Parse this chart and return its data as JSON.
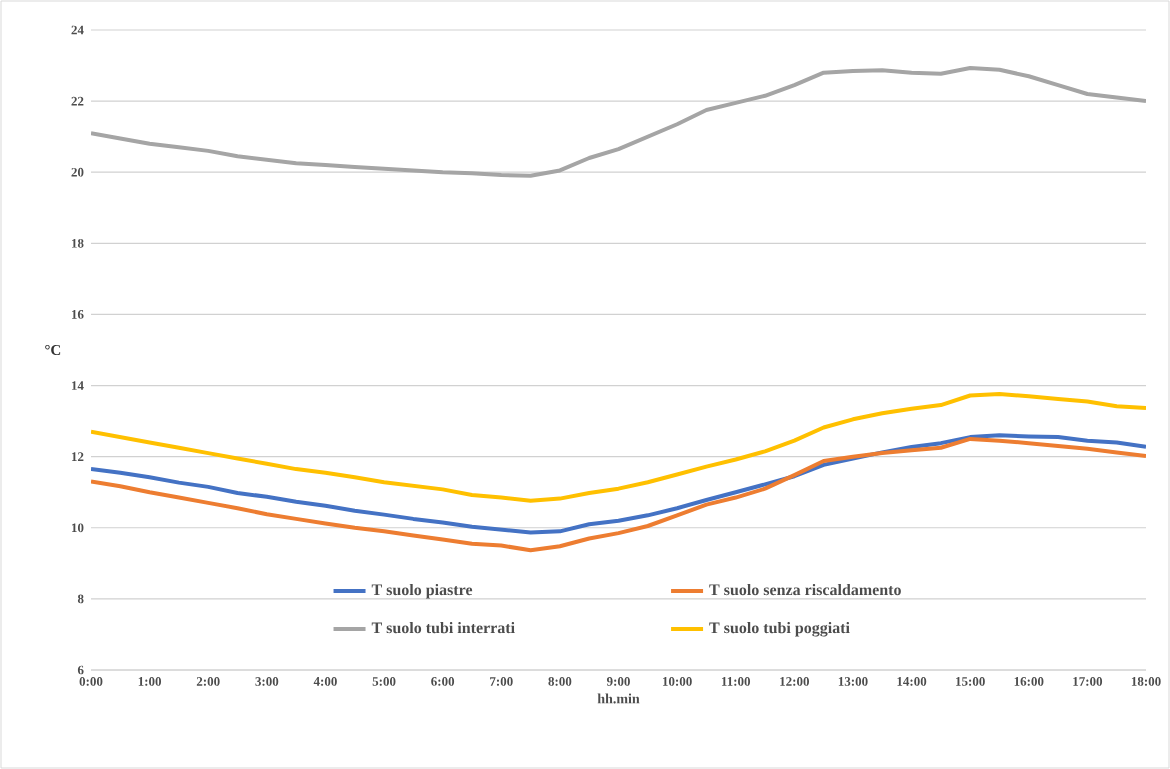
{
  "chart_data": {
    "type": "line",
    "xlabel": "hh.min",
    "ylabel": "°C",
    "x": [
      0,
      0.5,
      1,
      1.5,
      2,
      2.5,
      3,
      3.5,
      4,
      4.5,
      5,
      5.5,
      6,
      6.5,
      7,
      7.5,
      8,
      8.5,
      9,
      9.5,
      10,
      10.5,
      11,
      11.5,
      12,
      12.5,
      13,
      13.5,
      14,
      14.5,
      15,
      15.5,
      16,
      16.5,
      17,
      17.5,
      18
    ],
    "series": [
      {
        "name": "T suolo  piastre",
        "color": "#4472c4",
        "values": [
          11.65,
          11.55,
          11.42,
          11.27,
          11.15,
          10.98,
          10.87,
          10.73,
          10.62,
          10.48,
          10.37,
          10.25,
          10.15,
          10.03,
          9.95,
          9.87,
          9.9,
          10.1,
          10.2,
          10.35,
          10.55,
          10.78,
          11.0,
          11.22,
          11.45,
          11.77,
          11.95,
          12.12,
          12.27,
          12.38,
          12.55,
          12.6,
          12.57,
          12.55,
          12.45,
          12.4,
          12.28
        ]
      },
      {
        "name": "T suolo senza riscaldamento",
        "color": "#ed7d31",
        "values": [
          11.3,
          11.17,
          11.0,
          10.85,
          10.7,
          10.55,
          10.38,
          10.25,
          10.12,
          10.0,
          9.9,
          9.78,
          9.67,
          9.55,
          9.5,
          9.37,
          9.48,
          9.7,
          9.85,
          10.05,
          10.35,
          10.65,
          10.85,
          11.1,
          11.48,
          11.88,
          12.0,
          12.1,
          12.18,
          12.25,
          12.5,
          12.45,
          12.38,
          12.3,
          12.22,
          12.12,
          12.02
        ]
      },
      {
        "name": "T suolo tubi interrati",
        "color": "#a5a5a5",
        "values": [
          21.1,
          20.95,
          20.8,
          20.7,
          20.6,
          20.45,
          20.35,
          20.25,
          20.2,
          20.15,
          20.1,
          20.05,
          20.0,
          19.97,
          19.92,
          19.9,
          20.05,
          20.4,
          20.65,
          21.0,
          21.35,
          21.75,
          21.95,
          22.15,
          22.45,
          22.8,
          22.85,
          22.87,
          22.8,
          22.77,
          22.93,
          22.88,
          22.7,
          22.45,
          22.2,
          22.1,
          22.0
        ]
      },
      {
        "name": "T suolo tubi poggiati",
        "color": "#ffc000",
        "values": [
          12.7,
          12.55,
          12.4,
          12.25,
          12.1,
          11.95,
          11.8,
          11.65,
          11.55,
          11.42,
          11.28,
          11.18,
          11.08,
          10.92,
          10.85,
          10.76,
          10.82,
          10.98,
          11.1,
          11.28,
          11.5,
          11.72,
          11.92,
          12.15,
          12.45,
          12.82,
          13.05,
          13.22,
          13.35,
          13.45,
          13.72,
          13.76,
          13.7,
          13.62,
          13.55,
          13.42,
          13.37
        ]
      }
    ],
    "xlim": [
      0,
      18
    ],
    "xticks": [
      {
        "value": 0,
        "label": "0:00"
      },
      {
        "value": 1,
        "label": "1:00"
      },
      {
        "value": 2,
        "label": "2:00"
      },
      {
        "value": 3,
        "label": "3:00"
      },
      {
        "value": 4,
        "label": "4:00"
      },
      {
        "value": 5,
        "label": "5:00"
      },
      {
        "value": 6,
        "label": "6:00"
      },
      {
        "value": 7,
        "label": "7:00"
      },
      {
        "value": 8,
        "label": "8:00"
      },
      {
        "value": 9,
        "label": "9:00"
      },
      {
        "value": 10,
        "label": "10:00"
      },
      {
        "value": 11,
        "label": "11:00"
      },
      {
        "value": 12,
        "label": "12:00"
      },
      {
        "value": 13,
        "label": "13:00"
      },
      {
        "value": 14,
        "label": "14:00"
      },
      {
        "value": 15,
        "label": "15:00"
      },
      {
        "value": 16,
        "label": "16:00"
      },
      {
        "value": 17,
        "label": "17:00"
      },
      {
        "value": 18,
        "label": "18:00"
      }
    ],
    "ylim": [
      6,
      24
    ],
    "yticks": [
      6,
      8,
      10,
      12,
      14,
      16,
      18,
      20,
      22,
      24
    ],
    "grid": "y",
    "legend": "bottom",
    "marker": "none",
    "line_style": "solid"
  }
}
